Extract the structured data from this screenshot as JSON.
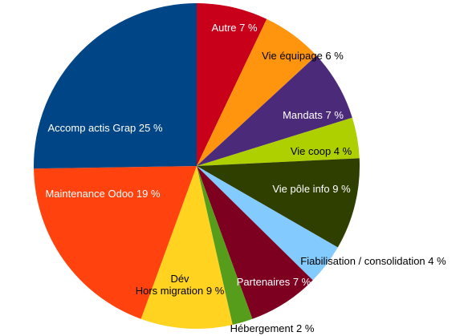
{
  "chart_data": {
    "type": "pie",
    "title": "",
    "start_angle_deg": 0,
    "direction": "clockwise",
    "slices": [
      {
        "name": "Autre",
        "label": "Autre 7 %",
        "value": 7,
        "color": "#c9001a",
        "text_color": "#ffffff"
      },
      {
        "name": "Vie équipage",
        "label": "Vie équipage 6 %",
        "value": 6,
        "color": "#ff950e",
        "text_color": "#000000"
      },
      {
        "name": "Mandats",
        "label": "Mandats 7 %",
        "value": 7,
        "color": "#4b2a7a",
        "text_color": "#ffffff"
      },
      {
        "name": "Vie coop",
        "label": "Vie coop 4 %",
        "value": 4,
        "color": "#aecf00",
        "text_color": "#000000"
      },
      {
        "name": "Vie pôle info",
        "label": "Vie pôle info 9 %",
        "value": 9,
        "color": "#2f3f00",
        "text_color": "#ffffff"
      },
      {
        "name": "Fiabilisation / consolidation",
        "label": "Fiabilisation / consolidation 4 %",
        "value": 4,
        "color": "#83caff",
        "text_color": "#000000"
      },
      {
        "name": "Partenaires",
        "label": "Partenaires 7 %",
        "value": 7,
        "color": "#7e0021",
        "text_color": "#ffffff"
      },
      {
        "name": "Hébergement",
        "label": "Hébergement 2 %",
        "value": 2,
        "color": "#579d1c",
        "text_color": "#000000"
      },
      {
        "name": "Dév Hors migration",
        "label_lines": [
          "Dév",
          "Hors migration 9 %"
        ],
        "value": 9,
        "color": "#ffd320",
        "text_color": "#000000"
      },
      {
        "name": "Maintenance Odoo",
        "label": "Maintenance Odoo 19 %",
        "value": 19,
        "color": "#ff420e",
        "text_color": "#ffffff"
      },
      {
        "name": "Accomp actis Grap",
        "label": "Accomp actis Grap 25 %",
        "value": 25,
        "color": "#004586",
        "text_color": "#ffffff"
      }
    ],
    "legend": "none"
  }
}
